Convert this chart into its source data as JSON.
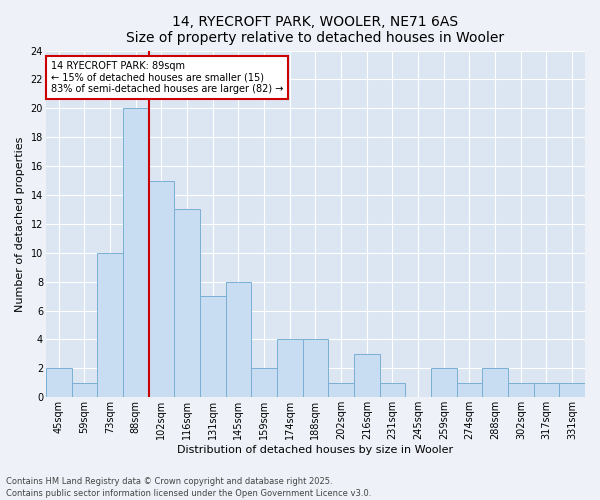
{
  "title": "14, RYECROFT PARK, WOOLER, NE71 6AS",
  "subtitle": "Size of property relative to detached houses in Wooler",
  "xlabel": "Distribution of detached houses by size in Wooler",
  "ylabel": "Number of detached properties",
  "categories": [
    "45sqm",
    "59sqm",
    "73sqm",
    "88sqm",
    "102sqm",
    "116sqm",
    "131sqm",
    "145sqm",
    "159sqm",
    "174sqm",
    "188sqm",
    "202sqm",
    "216sqm",
    "231sqm",
    "245sqm",
    "259sqm",
    "274sqm",
    "288sqm",
    "302sqm",
    "317sqm",
    "331sqm"
  ],
  "values": [
    2,
    1,
    10,
    20,
    15,
    13,
    7,
    8,
    2,
    4,
    4,
    1,
    3,
    1,
    0,
    2,
    1,
    2,
    1,
    1,
    1
  ],
  "bar_color": "#c9ddf2",
  "bar_edge_color": "#7aafd4",
  "red_line_index": 3,
  "ylim": [
    0,
    24
  ],
  "yticks": [
    0,
    2,
    4,
    6,
    8,
    10,
    12,
    14,
    16,
    18,
    20,
    22,
    24
  ],
  "annotation_text": "14 RYECROFT PARK: 89sqm\n← 15% of detached houses are smaller (15)\n83% of semi-detached houses are larger (82) →",
  "annotation_box_color": "#ffffff",
  "annotation_box_edge_color": "#cc0000",
  "footer_text": "Contains HM Land Registry data © Crown copyright and database right 2025.\nContains public sector information licensed under the Open Government Licence v3.0.",
  "background_color": "#eef2f8",
  "plot_bg_color": "#dce6f2",
  "grid_color": "#ffffff",
  "title_fontsize": 10,
  "axis_fontsize": 8,
  "tick_fontsize": 7
}
